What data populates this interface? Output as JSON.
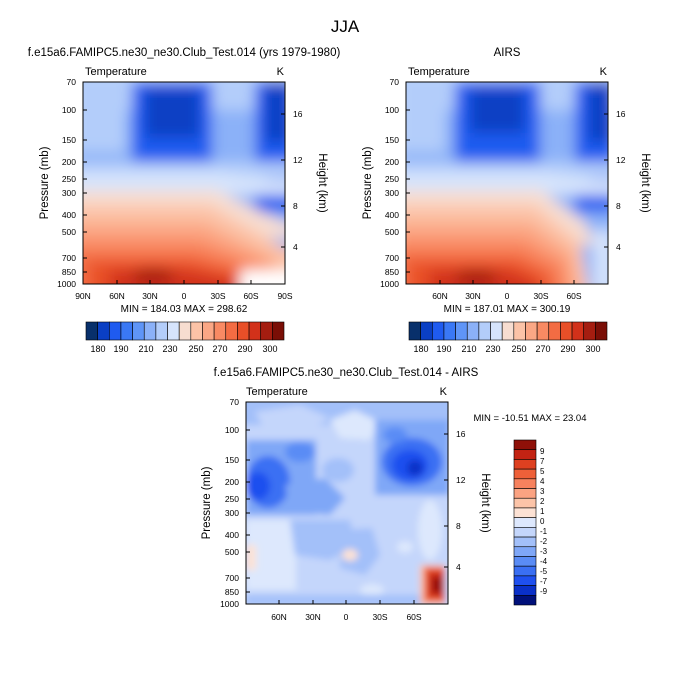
{
  "title": "JJA",
  "colors": {
    "abs_scale": [
      "#08306b",
      "#0a3fc4",
      "#1f5bf0",
      "#3a78f5",
      "#5f95f7",
      "#8bb1f8",
      "#b3cdfa",
      "#d6e4fc",
      "#f7ddd0",
      "#fcc3a7",
      "#fba785",
      "#f98a63",
      "#f36c43",
      "#e84f28",
      "#d2311a",
      "#a51d10",
      "#7a0e06"
    ],
    "diff_scale": [
      "#00107a",
      "#0a30c8",
      "#1f50ef",
      "#3a6ff3",
      "#5a8cf5",
      "#7fa7f7",
      "#a3c0f9",
      "#c4d6fb",
      "#dde8fd",
      "#fde2d4",
      "#fcc4a8",
      "#fba382",
      "#f7825e",
      "#ee6039",
      "#de4020",
      "#c32313",
      "#8f1008"
    ]
  },
  "chart_data": [
    {
      "type": "heatmap",
      "title": "f.e15a6.FAMIPC5.ne30_ne30.Club_Test.014 (yrs 1979-1980)",
      "left_label": "Temperature",
      "right_label": "K",
      "ylabel": "Pressure (mb)",
      "y2label": "Height (km)",
      "y_ticks": [
        "70",
        "100",
        "150",
        "200",
        "250",
        "300",
        "400",
        "500",
        "700",
        "850",
        "1000"
      ],
      "y2_ticks": [
        "16",
        "12",
        "8",
        "4"
      ],
      "x_ticks": [
        "90N",
        "60N",
        "30N",
        "0",
        "30S",
        "60S",
        "90S"
      ],
      "min_max": "MIN = 184.03   MAX = 298.62",
      "colorbar_labels": [
        "180",
        "190",
        "210",
        "230",
        "250",
        "270",
        "290",
        "300"
      ],
      "ylim": [
        1000,
        70
      ],
      "xlim": [
        "90N",
        "90S"
      ],
      "z_range": [
        184.03,
        298.62
      ]
    },
    {
      "type": "heatmap",
      "title": "AIRS",
      "left_label": "Temperature",
      "right_label": "K",
      "ylabel": "Pressure (mb)",
      "y2label": "Height (km)",
      "y_ticks": [
        "70",
        "100",
        "150",
        "200",
        "250",
        "300",
        "400",
        "500",
        "700",
        "850",
        "1000"
      ],
      "y2_ticks": [
        "16",
        "12",
        "8",
        "4"
      ],
      "x_ticks": [
        "60N",
        "30N",
        "0",
        "30S",
        "60S"
      ],
      "min_max": "MIN = 187.01   MAX = 300.19",
      "colorbar_labels": [
        "180",
        "190",
        "210",
        "230",
        "250",
        "270",
        "290",
        "300"
      ],
      "ylim": [
        1000,
        70
      ],
      "z_range": [
        187.01,
        300.19
      ]
    },
    {
      "type": "heatmap",
      "title": "f.e15a6.FAMIPC5.ne30_ne30.Club_Test.014 - AIRS",
      "left_label": "Temperature",
      "right_label": "K",
      "ylabel": "Pressure (mb)",
      "y2label": "Height (km)",
      "y_ticks": [
        "70",
        "100",
        "150",
        "200",
        "250",
        "300",
        "400",
        "500",
        "700",
        "850",
        "1000"
      ],
      "y2_ticks": [
        "16",
        "12",
        "8",
        "4"
      ],
      "x_ticks": [
        "60N",
        "30N",
        "0",
        "30S",
        "60S"
      ],
      "min_max": "MIN = -10.51   MAX =  23.04",
      "colorbar_labels": [
        "9",
        "7",
        "5",
        "4",
        "3",
        "2",
        "1",
        "0",
        "-1",
        "-2",
        "-3",
        "-4",
        "-5",
        "-7",
        "-9"
      ],
      "ylim": [
        1000,
        70
      ],
      "z_range": [
        -10.51,
        23.04
      ]
    }
  ]
}
